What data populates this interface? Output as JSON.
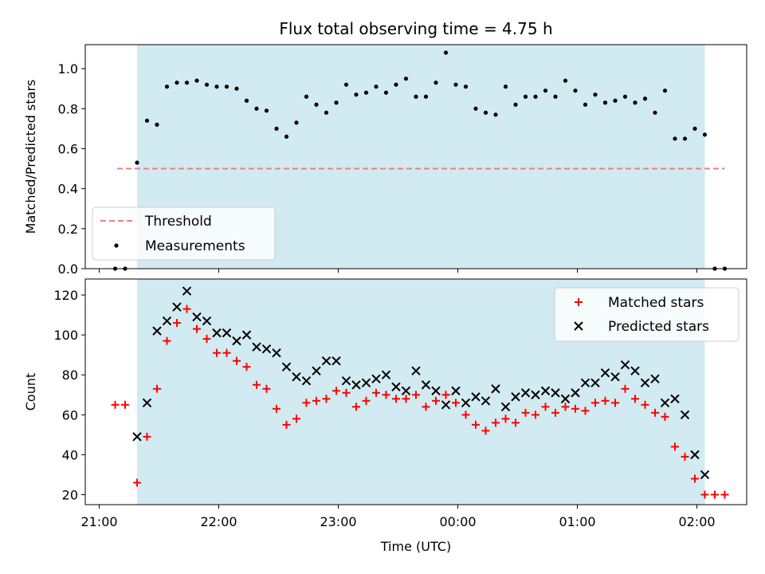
{
  "chart_data": {
    "title": "Flux total observing time = 4.75 h",
    "xlabel": "Time (UTC)",
    "x_ticks": [
      "21:00",
      "22:00",
      "23:00",
      "00:00",
      "01:00",
      "02:00"
    ],
    "colors": {
      "shade": "#add8e6",
      "threshold": "#f08080",
      "measurements": "#000000",
      "matched": "#ff0000",
      "predicted": "#000000"
    },
    "shaded_interval": [
      "21:19",
      "02:04"
    ],
    "panels": [
      {
        "type": "scatter",
        "ylabel": "Matched/Predicted stars",
        "ylim": [
          0,
          1.12
        ],
        "y_ticks": [
          "0.0",
          "0.2",
          "0.4",
          "0.6",
          "0.8",
          "1.0"
        ],
        "legend": {
          "position": "lower-left",
          "entries": [
            "Threshold",
            "Measurements"
          ]
        },
        "threshold": {
          "name": "Threshold",
          "value": 0.5,
          "x_start": "21:09",
          "x_end": "02:14"
        },
        "series": [
          {
            "name": "Measurements",
            "marker": "dot",
            "x": [
              "21:08",
              "21:13",
              "21:19",
              "21:24",
              "21:29",
              "21:34",
              "21:39",
              "21:44",
              "21:49",
              "21:54",
              "21:59",
              "22:04",
              "22:09",
              "22:14",
              "22:19",
              "22:24",
              "22:29",
              "22:34",
              "22:39",
              "22:44",
              "22:49",
              "22:54",
              "22:59",
              "23:04",
              "23:09",
              "23:14",
              "23:19",
              "23:24",
              "23:29",
              "23:34",
              "23:39",
              "23:44",
              "23:49",
              "23:54",
              "23:59",
              "00:04",
              "00:09",
              "00:14",
              "00:19",
              "00:24",
              "00:29",
              "00:34",
              "00:39",
              "00:44",
              "00:49",
              "00:54",
              "00:59",
              "01:04",
              "01:09",
              "01:14",
              "01:19",
              "01:24",
              "01:29",
              "01:34",
              "01:39",
              "01:44",
              "01:49",
              "01:54",
              "01:59",
              "02:04",
              "02:09",
              "02:14"
            ],
            "y": [
              0,
              0,
              0.53,
              0.74,
              0.72,
              0.91,
              0.93,
              0.93,
              0.94,
              0.92,
              0.91,
              0.91,
              0.9,
              0.84,
              0.8,
              0.79,
              0.7,
              0.66,
              0.73,
              0.86,
              0.82,
              0.78,
              0.83,
              0.92,
              0.87,
              0.88,
              0.91,
              0.88,
              0.92,
              0.95,
              0.86,
              0.86,
              0.93,
              1.08,
              0.92,
              0.91,
              0.8,
              0.78,
              0.77,
              0.91,
              0.82,
              0.86,
              0.86,
              0.89,
              0.86,
              0.94,
              0.89,
              0.82,
              0.87,
              0.83,
              0.84,
              0.86,
              0.83,
              0.85,
              0.78,
              0.89,
              0.65,
              0.65,
              0.7,
              0.67,
              0,
              0
            ]
          }
        ]
      },
      {
        "type": "scatter",
        "ylabel": "Count",
        "ylim": [
          15,
          128
        ],
        "y_ticks": [
          "20",
          "40",
          "60",
          "80",
          "100",
          "120"
        ],
        "legend": {
          "position": "upper-right",
          "entries": [
            "Matched stars",
            "Predicted stars"
          ]
        },
        "series": [
          {
            "name": "Matched stars",
            "marker": "plus",
            "x": [
              "21:08",
              "21:13",
              "21:19",
              "21:24",
              "21:29",
              "21:34",
              "21:39",
              "21:44",
              "21:49",
              "21:54",
              "21:59",
              "22:04",
              "22:09",
              "22:14",
              "22:19",
              "22:24",
              "22:29",
              "22:34",
              "22:39",
              "22:44",
              "22:49",
              "22:54",
              "22:59",
              "23:04",
              "23:09",
              "23:14",
              "23:19",
              "23:24",
              "23:29",
              "23:34",
              "23:39",
              "23:44",
              "23:49",
              "23:54",
              "23:59",
              "00:04",
              "00:09",
              "00:14",
              "00:19",
              "00:24",
              "00:29",
              "00:34",
              "00:39",
              "00:44",
              "00:49",
              "00:54",
              "00:59",
              "01:04",
              "01:09",
              "01:14",
              "01:19",
              "01:24",
              "01:29",
              "01:34",
              "01:39",
              "01:44",
              "01:49",
              "01:54",
              "01:59",
              "02:04",
              "02:09",
              "02:14"
            ],
            "y": [
              65,
              65,
              26,
              49,
              73,
              97,
              106,
              113,
              103,
              98,
              91,
              91,
              87,
              84,
              75,
              73,
              63,
              55,
              58,
              66,
              67,
              68,
              72,
              71,
              64,
              67,
              71,
              70,
              68,
              68,
              70,
              64,
              67,
              70,
              66,
              60,
              55,
              52,
              56,
              58,
              56,
              61,
              60,
              64,
              61,
              64,
              63,
              62,
              66,
              67,
              66,
              73,
              68,
              65,
              61,
              59,
              44,
              39,
              28,
              20,
              20,
              20
            ]
          },
          {
            "name": "Predicted stars",
            "marker": "x",
            "x": [
              "21:19",
              "21:24",
              "21:29",
              "21:34",
              "21:39",
              "21:44",
              "21:49",
              "21:54",
              "21:59",
              "22:04",
              "22:09",
              "22:14",
              "22:19",
              "22:24",
              "22:29",
              "22:34",
              "22:39",
              "22:44",
              "22:49",
              "22:54",
              "22:59",
              "23:04",
              "23:09",
              "23:14",
              "23:19",
              "23:24",
              "23:29",
              "23:34",
              "23:39",
              "23:44",
              "23:49",
              "23:54",
              "23:59",
              "00:04",
              "00:09",
              "00:14",
              "00:19",
              "00:24",
              "00:29",
              "00:34",
              "00:39",
              "00:44",
              "00:49",
              "00:54",
              "00:59",
              "01:04",
              "01:09",
              "01:14",
              "01:19",
              "01:24",
              "01:29",
              "01:34",
              "01:39",
              "01:44",
              "01:49",
              "01:54",
              "01:59",
              "02:04"
            ],
            "y": [
              49,
              66,
              102,
              107,
              114,
              122,
              109,
              107,
              101,
              101,
              97,
              100,
              94,
              93,
              91,
              84,
              79,
              77,
              82,
              87,
              87,
              77,
              75,
              76,
              78,
              80,
              74,
              72,
              82,
              75,
              72,
              65,
              72,
              66,
              69,
              67,
              73,
              64,
              69,
              71,
              70,
              72,
              71,
              68,
              71,
              76,
              76,
              81,
              79,
              85,
              82,
              76,
              78,
              66,
              68,
              60,
              40,
              30
            ]
          }
        ]
      }
    ]
  }
}
